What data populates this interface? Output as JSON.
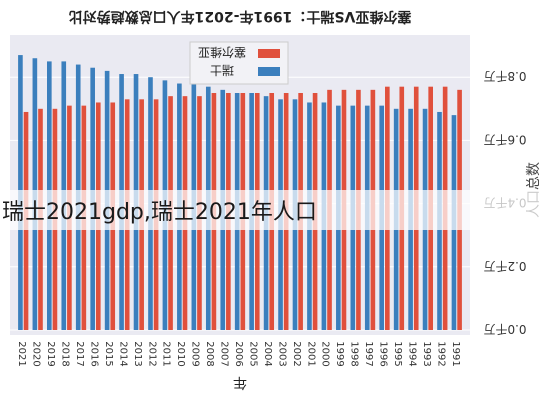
{
  "chart_data": {
    "type": "bar",
    "mirrored": true,
    "title": "塞尔维亚VS瑞士：1991年-2021年人口总数趋势对比",
    "xlabel": "年",
    "ylabel": "人口总数",
    "categories": [
      "2021",
      "2020",
      "2019",
      "2018",
      "2017",
      "2016",
      "2015",
      "2014",
      "2013",
      "2012",
      "2011",
      "2010",
      "2009",
      "2008",
      "2007",
      "2006",
      "2005",
      "2004",
      "2003",
      "2002",
      "2001",
      "2000",
      "1999",
      "1998",
      "1997",
      "1996",
      "1995",
      "1994",
      "1993",
      "1992",
      "1991"
    ],
    "series": [
      {
        "name": "塞尔维亚",
        "color": "#e0503c",
        "values": [
          0.69,
          0.7,
          0.7,
          0.71,
          0.71,
          0.72,
          0.72,
          0.73,
          0.73,
          0.73,
          0.74,
          0.74,
          0.74,
          0.75,
          0.75,
          0.75,
          0.75,
          0.75,
          0.75,
          0.75,
          0.75,
          0.76,
          0.76,
          0.76,
          0.76,
          0.77,
          0.77,
          0.77,
          0.77,
          0.77,
          0.76
        ]
      },
      {
        "name": "瑞士",
        "color": "#3b7fbd",
        "values": [
          0.87,
          0.86,
          0.85,
          0.85,
          0.84,
          0.83,
          0.82,
          0.81,
          0.81,
          0.8,
          0.79,
          0.78,
          0.78,
          0.77,
          0.76,
          0.75,
          0.75,
          0.74,
          0.73,
          0.73,
          0.72,
          0.72,
          0.71,
          0.71,
          0.71,
          0.71,
          0.7,
          0.7,
          0.7,
          0.69,
          0.68
        ]
      }
    ],
    "yticks": [
      "0.0千万",
      "0.2千万",
      "0.4千万",
      "0.6千万",
      "0.8千万"
    ],
    "ylim": [
      0,
      0.9
    ],
    "grid": true,
    "legend_position": "top-center"
  },
  "overlay_caption": "瑞士2021gdp,瑞士2021年人口"
}
